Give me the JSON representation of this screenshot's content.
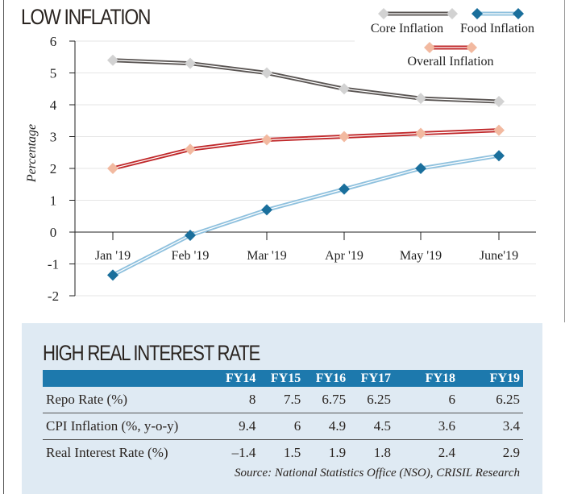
{
  "chart_data": {
    "type": "line",
    "title": "LOW INFLATION",
    "ylabel": "Percentage",
    "xlabel": "",
    "categories": [
      "Jan '19",
      "Feb '19",
      "Mar '19",
      "Apr '19",
      "May '19",
      "June'19"
    ],
    "ylim": [
      -2,
      6
    ],
    "yticks": [
      "6",
      "5",
      "4",
      "3",
      "2",
      "1",
      "0",
      "-1",
      "-2"
    ],
    "grid": true,
    "legend_position": "top-right",
    "series": [
      {
        "name": "Core Inflation",
        "values": [
          5.4,
          5.3,
          5.0,
          4.5,
          4.2,
          4.1
        ],
        "line_color": "#5a5553",
        "marker_color": "#d2d2d2"
      },
      {
        "name": "Food Inflation",
        "values": [
          -1.35,
          -0.1,
          0.7,
          1.35,
          2.0,
          2.4
        ],
        "line_color": "#8fc1de",
        "marker_color": "#1a6f9c"
      },
      {
        "name": "Overall Inflation",
        "values": [
          2.0,
          2.6,
          2.9,
          3.0,
          3.1,
          3.2
        ],
        "line_color": "#c0282a",
        "marker_color": "#f2b9a0"
      }
    ]
  },
  "table": {
    "title": "HIGH REAL INTEREST RATE",
    "headers": [
      "",
      "FY14",
      "FY15",
      "FY16",
      "FY17",
      "FY18",
      "FY19"
    ],
    "rows": [
      [
        "Repo Rate (%)",
        "8",
        "7.5",
        "6.75",
        "6.25",
        "6",
        "6.25"
      ],
      [
        "CPI Inflation (%, y-o-y)",
        "9.4",
        "6",
        "4.9",
        "4.5",
        "3.6",
        "3.4"
      ],
      [
        "Real Interest Rate (%)",
        "–1.4",
        "1.5",
        "1.9",
        "1.8",
        "2.4",
        "2.9"
      ]
    ],
    "source": "Source: National Statistics Office (NSO), CRISIL Research"
  }
}
